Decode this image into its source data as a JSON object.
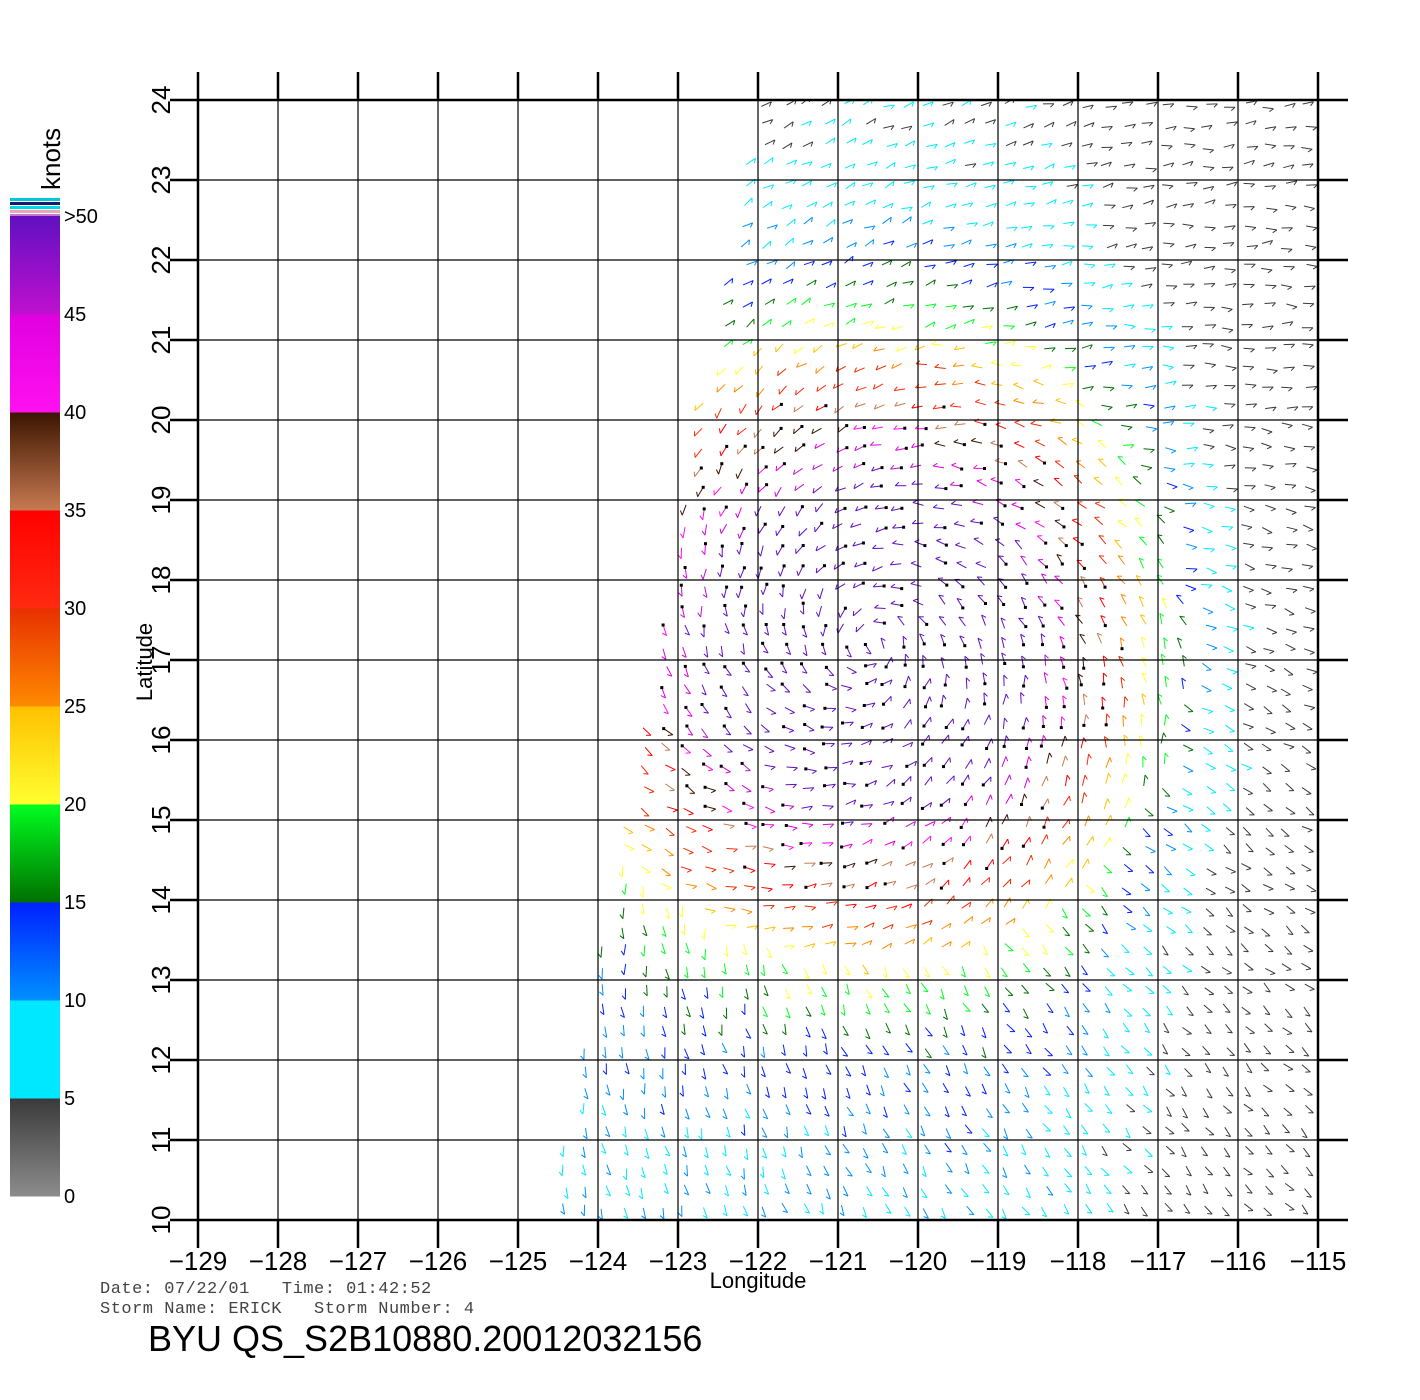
{
  "colorbar": {
    "unit_label": "knots",
    "levels": [
      {
        "label": "0",
        "value": 0
      },
      {
        "label": "5",
        "value": 5
      },
      {
        "label": "10",
        "value": 10
      },
      {
        "label": "15",
        "value": 15
      },
      {
        "label": "20",
        "value": 20
      },
      {
        "label": "25",
        "value": 25
      },
      {
        "label": "30",
        "value": 30
      },
      {
        "label": "35",
        "value": 35
      },
      {
        "label": "40",
        "value": 40
      },
      {
        "label": "45",
        "value": 45
      },
      {
        "label": ">50",
        "value": 50
      }
    ],
    "bands": [
      {
        "from": 0,
        "to": 5,
        "top": "#3a3a3a",
        "bottom": "#8c8c8c"
      },
      {
        "from": 5,
        "to": 10,
        "top": "#00e8ff",
        "bottom": "#00e8ff"
      },
      {
        "from": 10,
        "to": 15,
        "top": "#0020ff",
        "bottom": "#0090ff"
      },
      {
        "from": 15,
        "to": 20,
        "top": "#00ff20",
        "bottom": "#007000"
      },
      {
        "from": 20,
        "to": 25,
        "top": "#ffc000",
        "bottom": "#ffff30"
      },
      {
        "from": 25,
        "to": 30,
        "top": "#e83000",
        "bottom": "#ff8a00"
      },
      {
        "from": 30,
        "to": 35,
        "top": "#ff0000",
        "bottom": "#ff2a10"
      },
      {
        "from": 35,
        "to": 40,
        "top": "#3a1400",
        "bottom": "#c87a50"
      },
      {
        "from": 40,
        "to": 45,
        "top": "#e000e0",
        "bottom": "#ff10f0"
      },
      {
        "from": 45,
        "to": 50,
        "top": "#6010c0",
        "bottom": "#c010d0"
      }
    ]
  },
  "map": {
    "x_title": "Longitude",
    "y_title": "Latitude",
    "lon_range": [
      -129,
      -115
    ],
    "lat_range": [
      10,
      24
    ],
    "lon_ticks": [
      "−129",
      "−128",
      "−127",
      "−126",
      "−125",
      "−124",
      "−123",
      "−122",
      "−121",
      "−120",
      "−119",
      "−118",
      "−117",
      "−116",
      "−115"
    ],
    "lat_ticks": [
      "10",
      "11",
      "12",
      "13",
      "14",
      "15",
      "16",
      "17",
      "18",
      "19",
      "20",
      "21",
      "22",
      "23",
      "24"
    ],
    "grid": true,
    "swath_corners_lonlat": [
      [
        -124.6,
        10
      ],
      [
        -115,
        10
      ],
      [
        -115,
        24
      ],
      [
        -122,
        24
      ]
    ],
    "storm_center_lonlat": [
      -120.6,
      17.2
    ]
  },
  "info": {
    "line1": "Date: 07/22/01   Time: 01:42:52",
    "line2": "Storm Name: ERICK   Storm Number: 4",
    "product_id": "BYU QS_S2B10880.20012032156"
  }
}
